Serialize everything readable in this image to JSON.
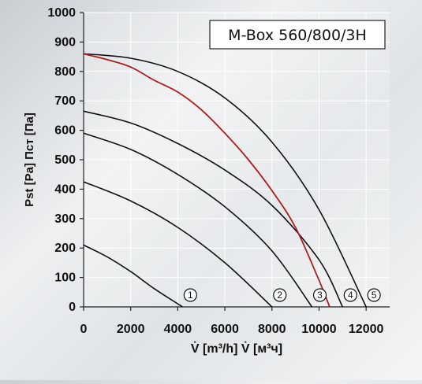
{
  "chart_data": {
    "type": "line",
    "title": "M-Box 560/800/3H",
    "xlabel": "V̇ [m³/h]  V̇ [м³ч]",
    "ylabel": "Pst [Pa]   Пст [Па]",
    "xlim": [
      0,
      13000
    ],
    "ylim": [
      0,
      1000
    ],
    "x_ticks": [
      "0",
      "2000",
      "4000",
      "6000",
      "8000",
      "10000",
      "12000"
    ],
    "y_ticks": [
      "0",
      "100",
      "200",
      "300",
      "400",
      "500",
      "600",
      "700",
      "800",
      "900",
      "1000"
    ],
    "grid": true,
    "series": [
      {
        "name": "1",
        "color": "#111111",
        "x": [
          0,
          1000,
          2000,
          3000,
          4200
        ],
        "y": [
          210,
          170,
          120,
          62,
          0
        ]
      },
      {
        "name": "2",
        "color": "#111111",
        "x": [
          0,
          2000,
          4000,
          6000,
          8000
        ],
        "y": [
          425,
          360,
          270,
          150,
          0
        ]
      },
      {
        "name": "3",
        "color": "#111111",
        "x": [
          0,
          2000,
          4000,
          6000,
          8000,
          9700
        ],
        "y": [
          590,
          535,
          450,
          340,
          190,
          0
        ]
      },
      {
        "name": "4",
        "color": "#111111",
        "x": [
          0,
          2000,
          4000,
          6000,
          8000,
          10000,
          11000
        ],
        "y": [
          665,
          625,
          555,
          465,
          345,
          160,
          0
        ]
      },
      {
        "name": "5",
        "color": "#111111",
        "x": [
          0,
          2000,
          4000,
          6000,
          8000,
          10000,
          12000
        ],
        "y": [
          860,
          845,
          800,
          710,
          560,
          330,
          0
        ]
      },
      {
        "name": "",
        "color": "#b01c1c",
        "x": [
          0,
          1000,
          2000,
          3000,
          4000,
          5000,
          6000,
          7000,
          8000,
          9000,
          10000,
          10450
        ],
        "y": [
          860,
          840,
          815,
          770,
          730,
          670,
          590,
          500,
          395,
          270,
          90,
          0
        ]
      }
    ],
    "curve_markers": [
      "1",
      "2",
      "3",
      "4",
      "5"
    ]
  }
}
